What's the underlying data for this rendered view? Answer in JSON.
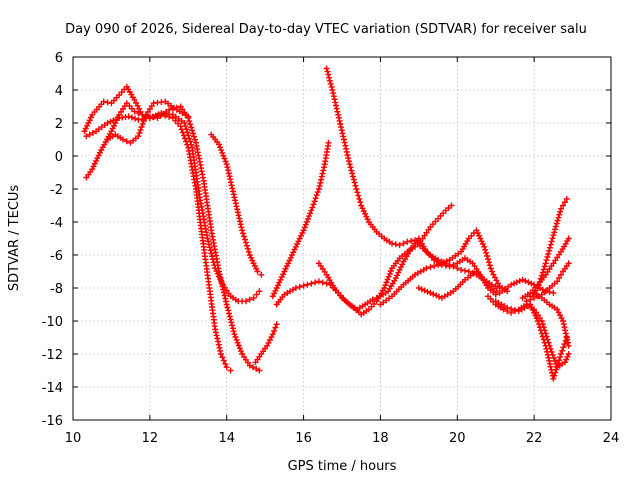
{
  "chart_data": {
    "type": "scatter",
    "title": "Day 090 of 2026, Sidereal Day-to-day VTEC variation (SDTVAR) for receiver salu",
    "xlabel": "GPS time / hours",
    "ylabel": "SDTVAR / TECUs",
    "xlim": [
      10,
      24
    ],
    "ylim": [
      -16,
      6
    ],
    "xticks": [
      10,
      12,
      14,
      16,
      18,
      20,
      22,
      24
    ],
    "yticks": [
      -16,
      -14,
      -12,
      -10,
      -8,
      -6,
      -4,
      -2,
      0,
      2,
      4,
      6
    ],
    "grid": true,
    "marker": "plus",
    "color": "#ff0000",
    "series": [
      {
        "name": "satellite track 1",
        "x": [
          10.35,
          10.6,
          10.9,
          11.2,
          11.45,
          11.7,
          12.0,
          12.3,
          12.6,
          12.8,
          13.0,
          13.2,
          13.4,
          13.55,
          13.7,
          13.85,
          14.0,
          14.1
        ],
        "y": [
          1.2,
          1.5,
          2.0,
          2.3,
          2.4,
          2.2,
          2.3,
          2.5,
          2.3,
          1.8,
          0.5,
          -2.0,
          -5.5,
          -8.0,
          -10.5,
          -12.0,
          -12.8,
          -13.0
        ]
      },
      {
        "name": "satellite track 2",
        "x": [
          10.35,
          10.5,
          10.7,
          11.0,
          11.2,
          11.4,
          11.6,
          11.8,
          12.0,
          12.3,
          12.6,
          12.9,
          13.1,
          13.3,
          13.5,
          13.7,
          13.9,
          14.1,
          14.3,
          14.5,
          14.7,
          14.85
        ],
        "y": [
          -1.3,
          -0.8,
          0.2,
          1.5,
          2.5,
          3.2,
          2.7,
          2.5,
          2.3,
          2.6,
          2.5,
          2.0,
          0.5,
          -2.5,
          -5.0,
          -6.8,
          -7.8,
          -8.5,
          -8.8,
          -8.8,
          -8.6,
          -8.2
        ]
      },
      {
        "name": "satellite track 3",
        "x": [
          10.3,
          10.5,
          10.8,
          11.0,
          11.2,
          11.4,
          11.6,
          11.8,
          12.0,
          12.2,
          12.5,
          12.8,
          13.0,
          13.2,
          13.4,
          13.6,
          13.8,
          14.0,
          14.2,
          14.4,
          14.6,
          14.85
        ],
        "y": [
          1.5,
          2.5,
          3.3,
          3.2,
          3.7,
          4.2,
          3.4,
          2.5,
          2.4,
          2.3,
          2.8,
          3.0,
          2.3,
          0.8,
          -1.5,
          -4.5,
          -7.0,
          -9.0,
          -10.8,
          -12.0,
          -12.7,
          -13.0
        ]
      },
      {
        "name": "satellite track 4",
        "x": [
          10.9,
          11.1,
          11.3,
          11.5,
          11.7,
          11.9,
          12.1,
          12.4,
          12.7,
          13.0
        ],
        "y": [
          1.0,
          1.3,
          1.0,
          0.8,
          1.2,
          2.5,
          3.2,
          3.3,
          2.8,
          2.4
        ]
      },
      {
        "name": "satellite track 5",
        "x": [
          13.6,
          13.8,
          14.0,
          14.2,
          14.4,
          14.6,
          14.8,
          14.9
        ],
        "y": [
          1.3,
          0.7,
          -0.5,
          -2.5,
          -4.5,
          -6.0,
          -7.0,
          -7.2
        ]
      },
      {
        "name": "satellite track 6",
        "x": [
          14.75,
          14.9,
          15.05,
          15.2,
          15.3
        ],
        "y": [
          -12.5,
          -12.0,
          -11.5,
          -10.8,
          -10.2
        ]
      },
      {
        "name": "satellite track 7",
        "x": [
          15.2,
          15.4,
          15.6,
          15.8,
          16.0,
          16.2,
          16.4,
          16.55,
          16.65
        ],
        "y": [
          -8.5,
          -7.5,
          -6.5,
          -5.5,
          -4.5,
          -3.3,
          -2.0,
          -0.5,
          0.8
        ]
      },
      {
        "name": "satellite track 8",
        "x": [
          15.3,
          15.5,
          15.8,
          16.1,
          16.4,
          16.7,
          16.9,
          17.1,
          17.3,
          17.5,
          17.7,
          17.9,
          18.1,
          18.3,
          18.5,
          18.7,
          18.9,
          19.1,
          19.3,
          19.5,
          19.7,
          19.85
        ],
        "y": [
          -9.0,
          -8.4,
          -8.0,
          -7.8,
          -7.6,
          -7.8,
          -8.3,
          -8.8,
          -9.2,
          -9.6,
          -9.3,
          -8.8,
          -8.0,
          -6.8,
          -6.2,
          -5.8,
          -5.5,
          -5.0,
          -4.3,
          -3.8,
          -3.3,
          -3.0
        ]
      },
      {
        "name": "satellite track 9",
        "x": [
          16.6,
          16.75,
          16.9,
          17.05,
          17.2,
          17.35,
          17.5,
          17.7,
          17.9,
          18.1,
          18.3,
          18.5,
          18.7,
          18.9,
          19.1,
          19.3,
          19.5,
          19.7,
          19.9,
          20.1,
          20.3,
          20.5,
          20.7,
          20.9,
          21.1
        ],
        "y": [
          5.3,
          4.0,
          2.5,
          1.0,
          -0.5,
          -1.8,
          -3.0,
          -4.0,
          -4.6,
          -5.0,
          -5.3,
          -5.4,
          -5.2,
          -5.1,
          -5.6,
          -6.0,
          -6.3,
          -6.5,
          -6.7,
          -6.9,
          -7.0,
          -7.2,
          -7.5,
          -7.8,
          -8.0
        ]
      },
      {
        "name": "satellite track 10",
        "x": [
          16.4,
          16.6,
          16.8,
          17.0,
          17.2,
          17.4,
          17.6,
          17.8,
          18.0,
          18.2,
          18.4,
          18.6,
          18.8,
          19.0,
          19.2,
          19.4,
          19.6,
          19.8,
          20.0,
          20.2,
          20.4,
          20.6,
          20.8,
          21.0
        ],
        "y": [
          -6.5,
          -7.2,
          -8.0,
          -8.6,
          -9.0,
          -9.3,
          -9.0,
          -8.7,
          -8.5,
          -8.2,
          -7.4,
          -6.4,
          -5.6,
          -5.0,
          -5.8,
          -6.3,
          -6.6,
          -6.7,
          -6.5,
          -6.2,
          -6.5,
          -7.2,
          -8.0,
          -8.4
        ]
      },
      {
        "name": "satellite track 11",
        "x": [
          18.0,
          18.3,
          18.6,
          18.9,
          19.2,
          19.5,
          19.8,
          20.1,
          20.3,
          20.5,
          20.7,
          20.9,
          21.1,
          21.3
        ],
        "y": [
          -9.0,
          -8.5,
          -7.8,
          -7.2,
          -6.8,
          -6.6,
          -6.3,
          -5.8,
          -5.0,
          -4.5,
          -5.5,
          -7.0,
          -7.9,
          -8.2
        ]
      },
      {
        "name": "satellite track 12",
        "x": [
          19.0,
          19.3,
          19.6,
          19.9,
          20.2,
          20.5,
          20.8,
          21.1,
          21.4,
          21.7,
          22.0,
          22.3,
          22.5
        ],
        "y": [
          -8.0,
          -8.3,
          -8.6,
          -8.2,
          -7.5,
          -7.0,
          -7.8,
          -8.3,
          -7.8,
          -7.5,
          -7.8,
          -8.2,
          -8.3
        ]
      },
      {
        "name": "satellite track 13",
        "x": [
          20.8,
          21.0,
          21.2,
          21.4,
          21.6,
          21.8,
          22.0,
          22.2,
          22.4,
          22.6,
          22.8,
          22.9
        ],
        "y": [
          -8.5,
          -9.0,
          -9.3,
          -9.5,
          -9.3,
          -9.0,
          -9.3,
          -10.0,
          -11.5,
          -12.8,
          -12.5,
          -12.0
        ]
      },
      {
        "name": "satellite track 14",
        "x": [
          21.0,
          21.3,
          21.6,
          21.9,
          22.1,
          22.3,
          22.5,
          22.7,
          22.85
        ],
        "y": [
          -8.8,
          -9.2,
          -9.4,
          -9.0,
          -10.0,
          -11.5,
          -13.5,
          -12.0,
          -11.0
        ]
      },
      {
        "name": "satellite track 15",
        "x": [
          22.0,
          22.2,
          22.4,
          22.6,
          22.75,
          22.9
        ],
        "y": [
          -8.3,
          -8.6,
          -9.0,
          -9.3,
          -10.0,
          -11.5
        ]
      },
      {
        "name": "satellite track 16",
        "x": [
          21.9,
          22.1,
          22.3,
          22.5,
          22.7,
          22.85
        ],
        "y": [
          -8.5,
          -8.0,
          -6.5,
          -4.8,
          -3.2,
          -2.6
        ]
      },
      {
        "name": "satellite track 17",
        "x": [
          21.7,
          21.9,
          22.1,
          22.3,
          22.5,
          22.7,
          22.9
        ],
        "y": [
          -8.6,
          -8.3,
          -7.8,
          -7.2,
          -6.5,
          -5.8,
          -5.0
        ]
      },
      {
        "name": "satellite track 18",
        "x": [
          21.8,
          22.0,
          22.2,
          22.4,
          22.6,
          22.75,
          22.9
        ],
        "y": [
          -8.8,
          -8.6,
          -8.4,
          -8.0,
          -7.6,
          -7.0,
          -6.5
        ]
      }
    ]
  }
}
